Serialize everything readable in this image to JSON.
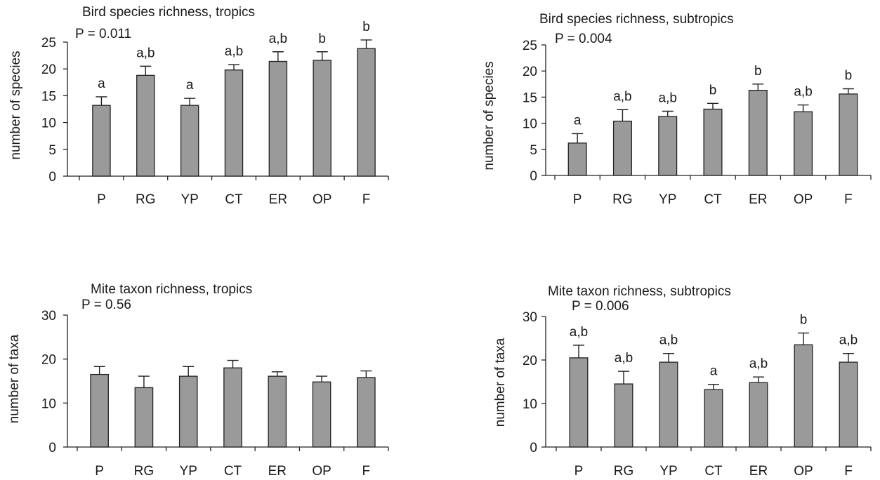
{
  "chart_data": [
    {
      "type": "bar",
      "title": "Bird species richness, tropics",
      "p_value_text": "P = 0.011",
      "ylabel": "number of species",
      "ylim": [
        0,
        25
      ],
      "yticks": [
        0,
        5,
        10,
        15,
        20,
        25
      ],
      "categories": [
        "P",
        "RG",
        "YP",
        "CT",
        "ER",
        "OP",
        "F"
      ],
      "values": [
        13.2,
        18.8,
        13.2,
        19.8,
        21.4,
        21.6,
        23.8
      ],
      "errors": [
        1.6,
        1.7,
        1.3,
        1.0,
        1.8,
        1.6,
        1.6
      ],
      "sig_letters": [
        "a",
        "a,b",
        "a",
        "a,b",
        "a,b",
        "b",
        "b"
      ],
      "bar_color": "#9a9a9a"
    },
    {
      "type": "bar",
      "title": "Bird species richness, subtropics",
      "p_value_text": "P = 0.004",
      "ylabel": "number of species",
      "ylim": [
        0,
        25
      ],
      "yticks": [
        0,
        5,
        10,
        15,
        20,
        25
      ],
      "categories": [
        "P",
        "RG",
        "YP",
        "CT",
        "ER",
        "OP",
        "F"
      ],
      "values": [
        6.2,
        10.4,
        11.3,
        12.7,
        16.3,
        12.2,
        15.6
      ],
      "errors": [
        1.8,
        2.2,
        1.0,
        1.1,
        1.2,
        1.3,
        1.0
      ],
      "sig_letters": [
        "a",
        "a,b",
        "a,b",
        "b",
        "b",
        "a,b",
        "b"
      ],
      "bar_color": "#9a9a9a"
    },
    {
      "type": "bar",
      "title": "Mite taxon richness, tropics",
      "p_value_text": "P = 0.56",
      "ylabel": "number of taxa",
      "ylim": [
        0,
        30
      ],
      "yticks": [
        0,
        10,
        20,
        30
      ],
      "categories": [
        "P",
        "RG",
        "YP",
        "CT",
        "ER",
        "OP",
        "F"
      ],
      "values": [
        16.5,
        13.5,
        16.1,
        18.0,
        16.1,
        14.8,
        15.8
      ],
      "errors": [
        1.8,
        2.6,
        2.2,
        1.7,
        1.0,
        1.3,
        1.5
      ],
      "sig_letters": [],
      "bar_color": "#9a9a9a"
    },
    {
      "type": "bar",
      "title": "Mite taxon richness, subtropics",
      "p_value_text": "P = 0.006",
      "ylabel": "number of taxa",
      "ylim": [
        0,
        30
      ],
      "yticks": [
        0,
        10,
        20,
        30
      ],
      "categories": [
        "P",
        "RG",
        "YP",
        "CT",
        "ER",
        "OP",
        "F"
      ],
      "values": [
        20.5,
        14.5,
        19.5,
        13.2,
        14.8,
        23.5,
        19.5
      ],
      "errors": [
        2.9,
        2.9,
        2.0,
        1.2,
        1.3,
        2.7,
        2.0
      ],
      "sig_letters": [
        "a,b",
        "a,b",
        "a,b",
        "a",
        "a,b",
        "b",
        "a,b"
      ],
      "bar_color": "#9a9a9a"
    }
  ]
}
